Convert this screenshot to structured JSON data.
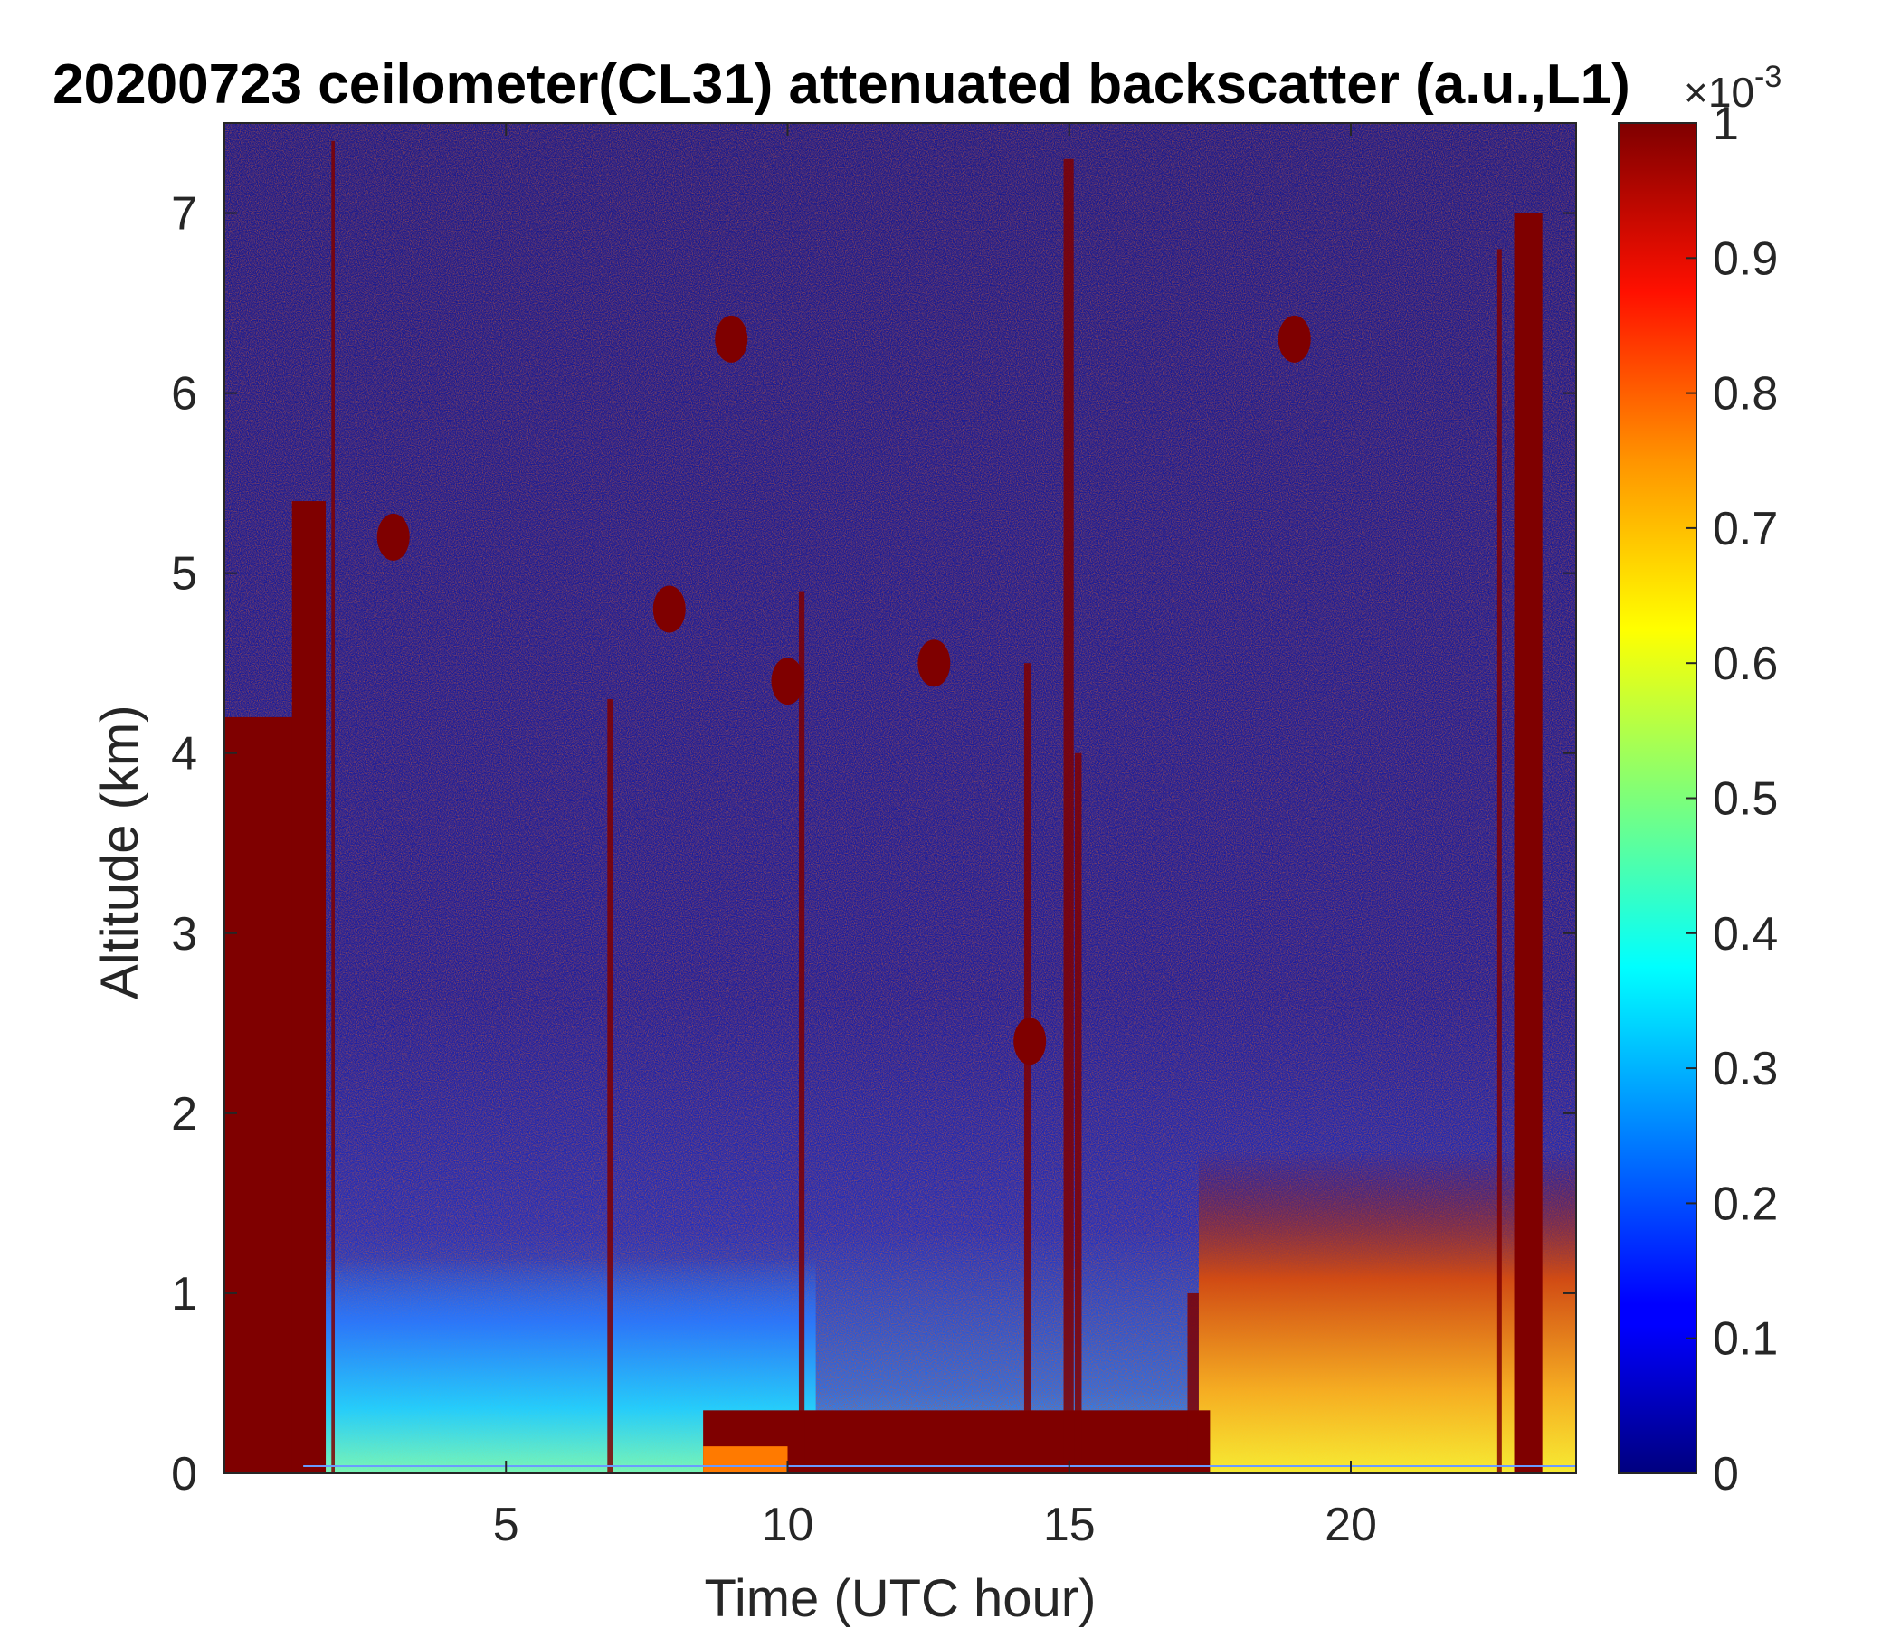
{
  "chart_data": {
    "type": "heatmap",
    "title": "20200723 ceilometer(CL31) attenuated backscatter (a.u.,L1)",
    "xlabel": "Time (UTC hour)",
    "ylabel": "Altitude (km)",
    "xlim": [
      0,
      24
    ],
    "ylim": [
      0,
      7.5
    ],
    "xticks": [
      5,
      10,
      15,
      20
    ],
    "xtick_labels": [
      "5",
      "10",
      "15",
      "20"
    ],
    "yticks": [
      0,
      1,
      2,
      3,
      4,
      5,
      6,
      7
    ],
    "ytick_labels": [
      "0",
      "1",
      "2",
      "3",
      "4",
      "5",
      "6",
      "7"
    ],
    "colorbar": {
      "colormap": "jet",
      "range": [
        0,
        0.001
      ],
      "ticks": [
        0,
        0.1,
        0.2,
        0.3,
        0.4,
        0.5,
        0.6,
        0.7,
        0.8,
        0.9,
        1
      ],
      "tick_labels": [
        "0",
        "0.1",
        "0.2",
        "0.3",
        "0.4",
        "0.5",
        "0.6",
        "0.7",
        "0.8",
        "0.9",
        "1"
      ],
      "exponent_label": "×10",
      "exponent_power": "-3"
    },
    "grid": false,
    "features": {
      "saturated_columns": [
        {
          "x_start": 0.0,
          "x_end": 1.3,
          "top_km": 4.2
        },
        {
          "x_start": 1.2,
          "x_end": 1.8,
          "top_km": 5.4
        },
        {
          "x_start": 22.9,
          "x_end": 23.4,
          "top_km": 7.0
        }
      ],
      "surface_layer": [
        {
          "x_start": 8.5,
          "x_end": 17.5,
          "top_km": 0.35
        },
        {
          "x_start": 17.5,
          "x_end": 24,
          "top_km": 0.6
        }
      ]
    }
  }
}
